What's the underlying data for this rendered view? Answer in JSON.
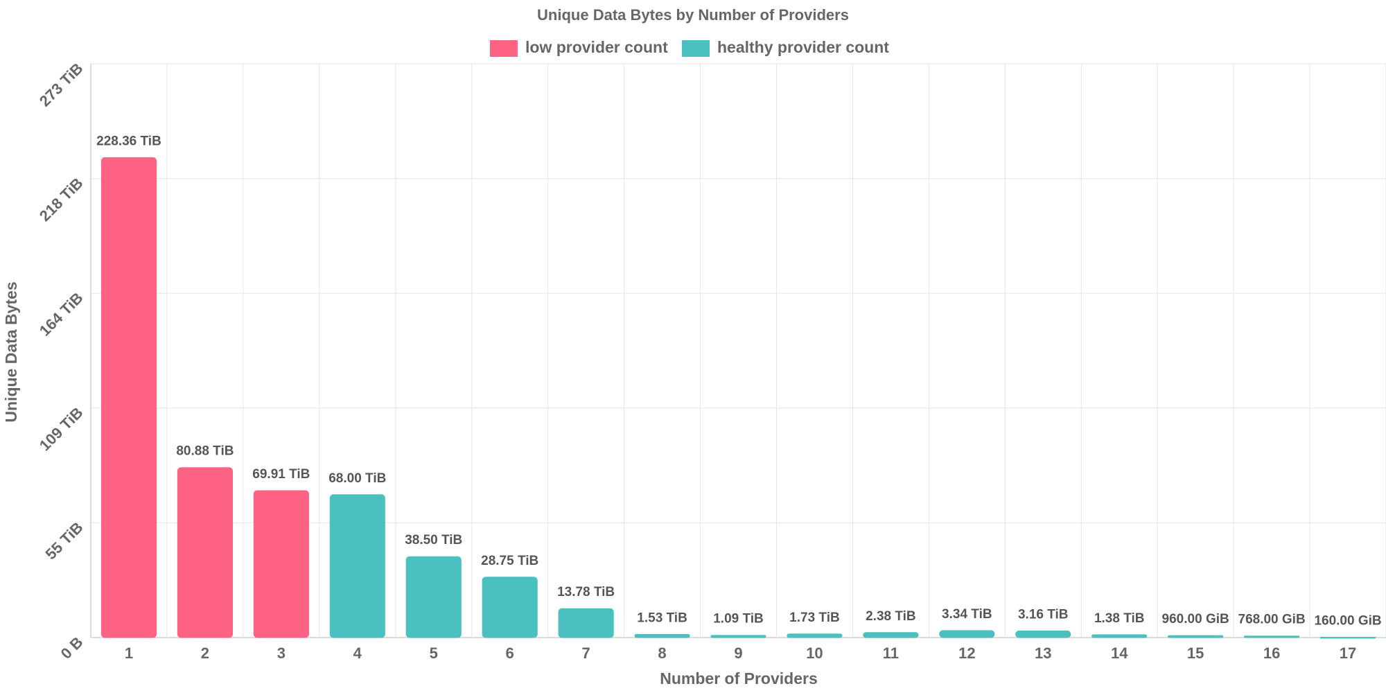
{
  "chart_data": {
    "type": "bar",
    "title": "Unique Data Bytes by Number of Providers",
    "xlabel": "Number of Providers",
    "ylabel": "Unique Data Bytes",
    "categories": [
      "1",
      "2",
      "3",
      "4",
      "5",
      "6",
      "7",
      "8",
      "9",
      "10",
      "11",
      "12",
      "13",
      "14",
      "15",
      "16",
      "17"
    ],
    "values_tib": [
      228.36,
      80.88,
      69.91,
      68.0,
      38.5,
      28.75,
      13.78,
      1.53,
      1.09,
      1.73,
      2.38,
      3.34,
      3.16,
      1.38,
      0.9375,
      0.75,
      0.15625
    ],
    "data_labels": [
      "228.36 TiB",
      "80.88 TiB",
      "69.91 TiB",
      "68.00 TiB",
      "38.50 TiB",
      "28.75 TiB",
      "13.78 TiB",
      "1.53 TiB",
      "1.09 TiB",
      "1.73 TiB",
      "2.38 TiB",
      "3.34 TiB",
      "3.16 TiB",
      "1.38 TiB",
      "960.00 GiB",
      "768.00 GiB",
      "160.00 GiB"
    ],
    "series_group": [
      "low",
      "low",
      "low",
      "healthy",
      "healthy",
      "healthy",
      "healthy",
      "healthy",
      "healthy",
      "healthy",
      "healthy",
      "healthy",
      "healthy",
      "healthy",
      "healthy",
      "healthy",
      "healthy"
    ],
    "legend": [
      {
        "key": "low",
        "label": "low provider count",
        "color": "#ff6384"
      },
      {
        "key": "healthy",
        "label": "healthy provider count",
        "color": "#4bc0c0"
      }
    ],
    "ylim_tib": [
      0,
      273
    ],
    "y_ticks": [
      {
        "value": 0,
        "label": "0 B"
      },
      {
        "value": 54.6,
        "label": "55 TiB"
      },
      {
        "value": 109.2,
        "label": "109 TiB"
      },
      {
        "value": 163.8,
        "label": "164 TiB"
      },
      {
        "value": 218.4,
        "label": "218 TiB"
      },
      {
        "value": 273,
        "label": "273 TiB"
      }
    ],
    "grid": true,
    "legend_position": "top"
  }
}
